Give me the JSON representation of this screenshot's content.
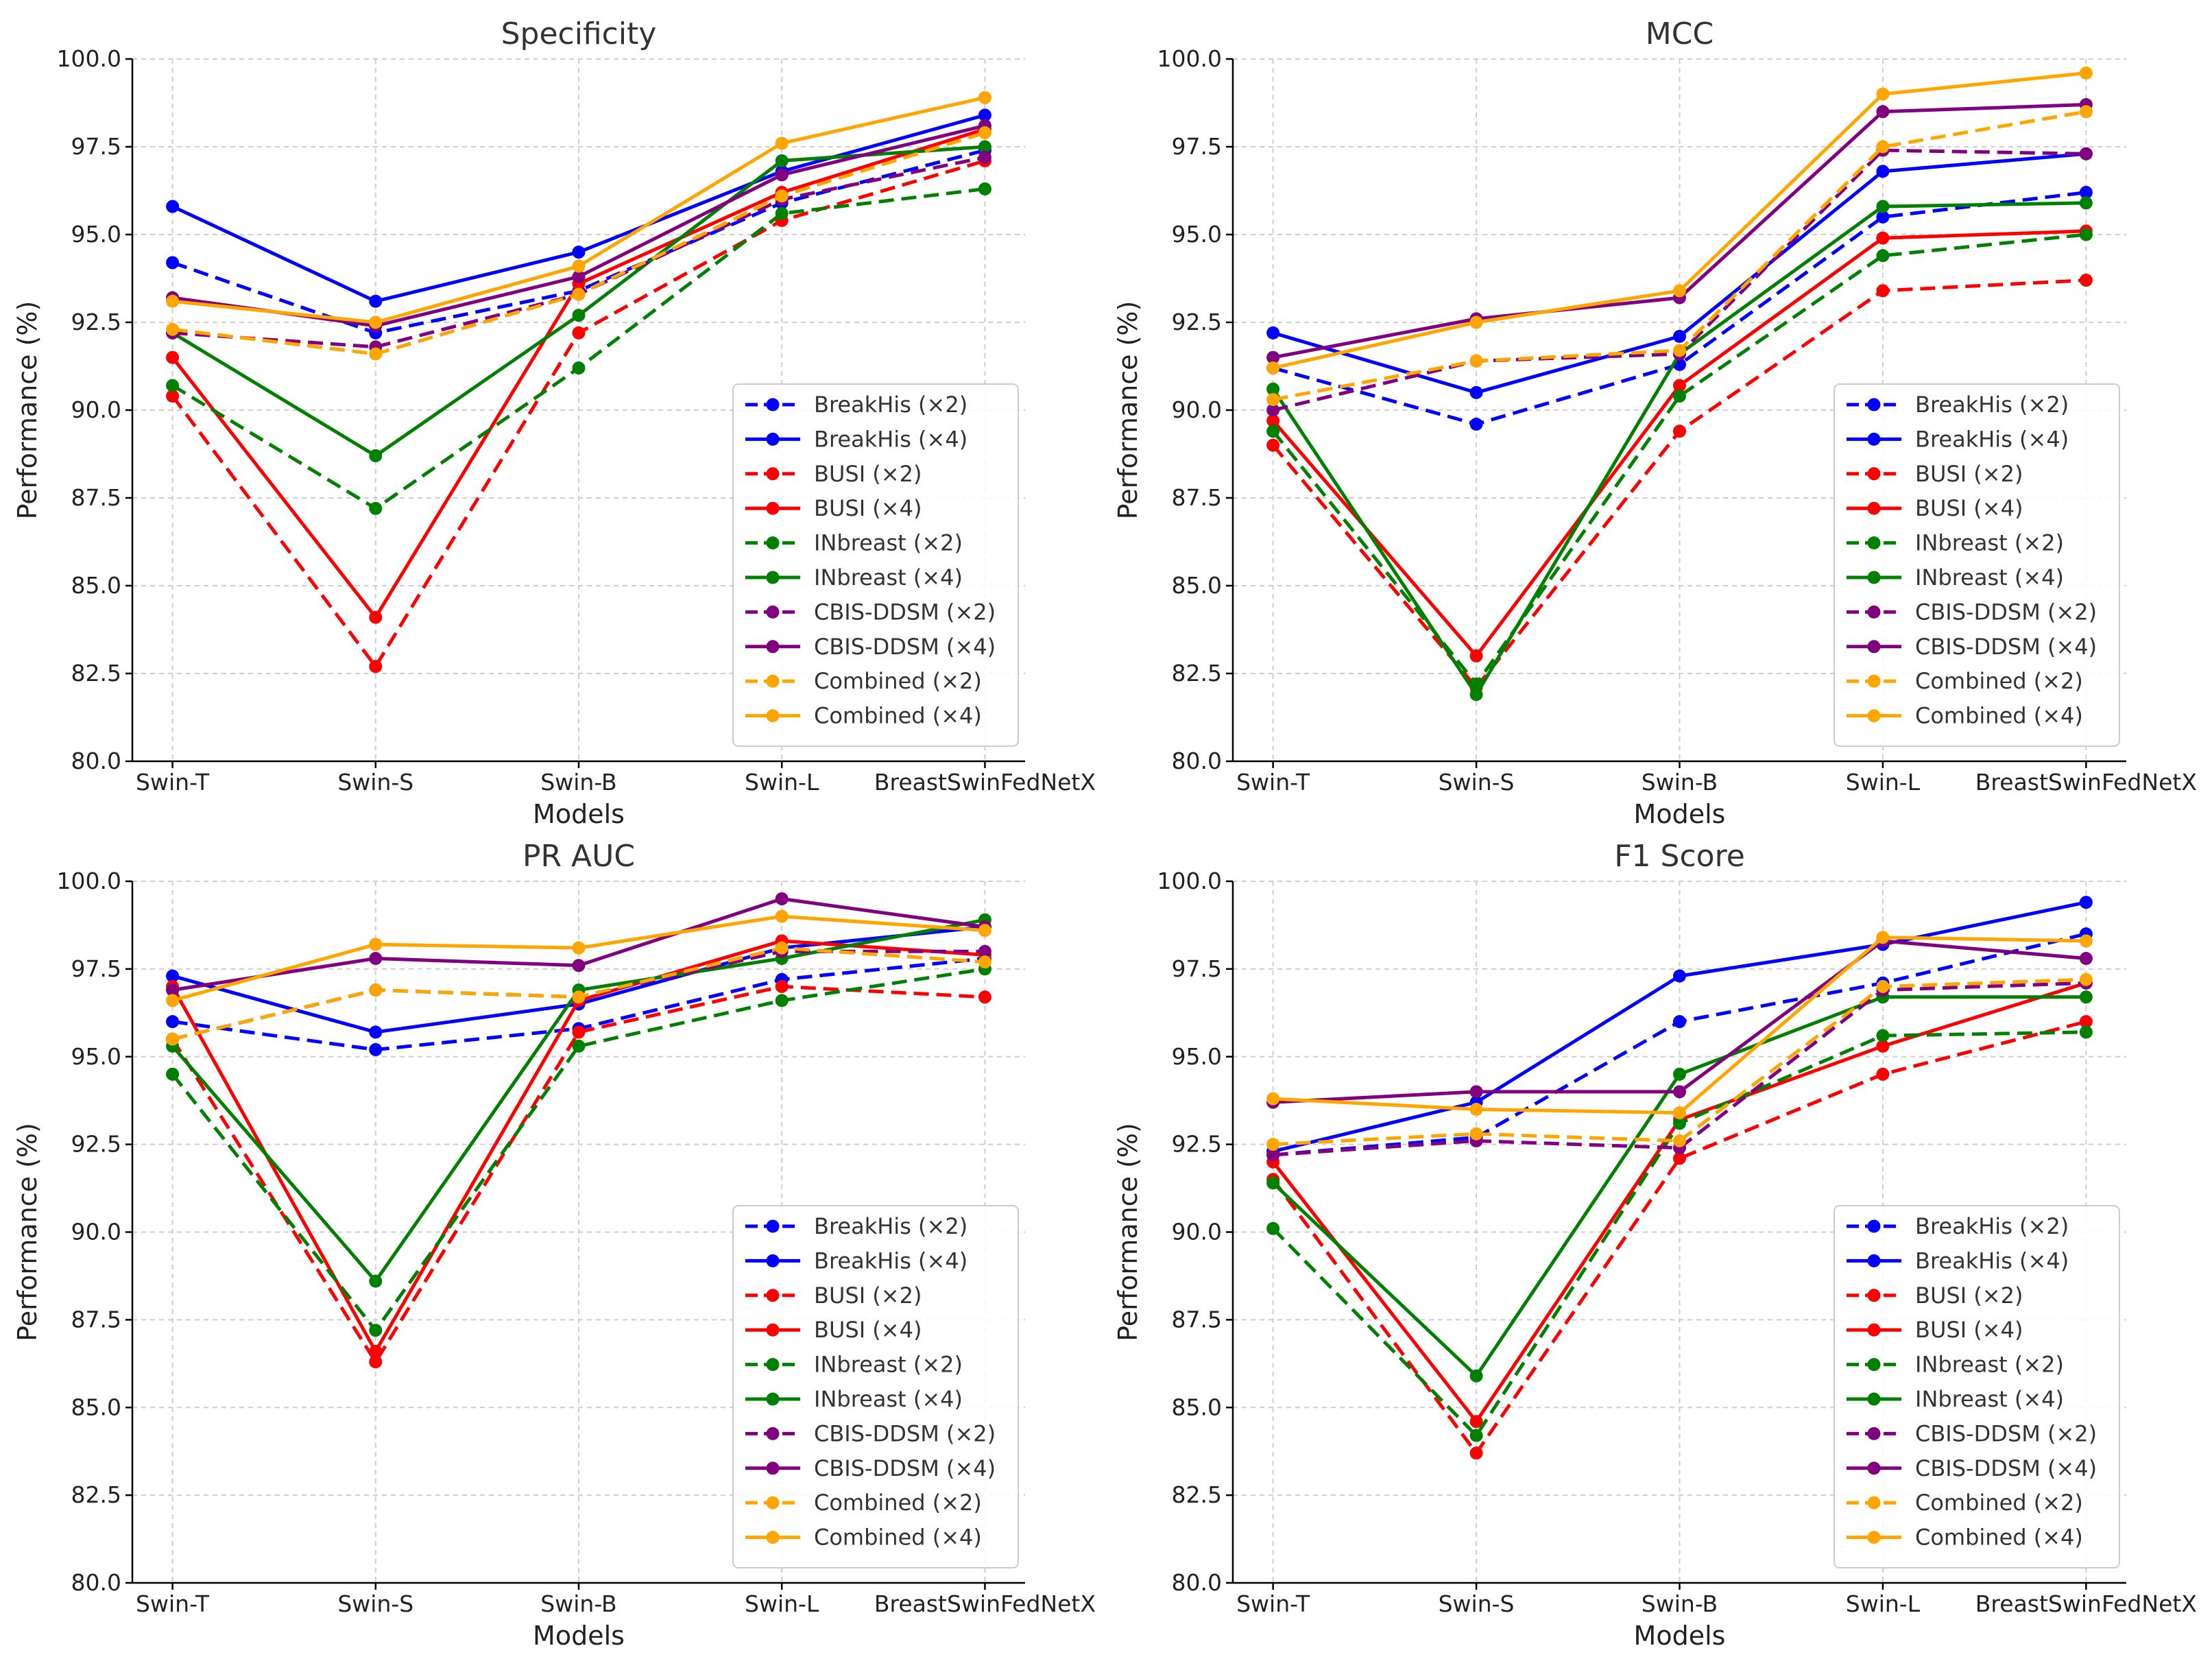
{
  "chart_data": [
    {
      "type": "line",
      "title": "Specificity",
      "xlabel": "Models",
      "ylabel": "Performance (%)",
      "ylim": [
        80,
        100
      ],
      "yticks": [
        "80.0",
        "82.5",
        "85.0",
        "87.5",
        "90.0",
        "92.5",
        "95.0",
        "97.5",
        "100.0"
      ],
      "categories": [
        "Swin-T",
        "Swin-S",
        "Swin-B",
        "Swin-L",
        "BreastSwinFedNetX"
      ],
      "legend_position": "lower-right",
      "grid": true,
      "series": [
        {
          "name": "BreakHis (×2)",
          "color": "#0000ff",
          "dashed": true,
          "values": [
            94.2,
            92.2,
            93.4,
            95.9,
            97.4
          ]
        },
        {
          "name": "BreakHis (×4)",
          "color": "#0000ff",
          "dashed": false,
          "values": [
            95.8,
            93.1,
            94.5,
            96.8,
            98.4
          ]
        },
        {
          "name": "BUSI (×2)",
          "color": "#ff0000",
          "dashed": true,
          "values": [
            90.4,
            82.7,
            92.2,
            95.4,
            97.1
          ]
        },
        {
          "name": "BUSI (×4)",
          "color": "#ff0000",
          "dashed": false,
          "values": [
            91.5,
            84.1,
            93.6,
            96.2,
            98.0
          ]
        },
        {
          "name": "INbreast (×2)",
          "color": "#008000",
          "dashed": true,
          "values": [
            90.7,
            87.2,
            91.2,
            95.6,
            96.3
          ]
        },
        {
          "name": "INbreast (×4)",
          "color": "#008000",
          "dashed": false,
          "values": [
            92.2,
            88.7,
            92.7,
            97.1,
            97.5
          ]
        },
        {
          "name": "CBIS-DDSM (×2)",
          "color": "#800080",
          "dashed": true,
          "values": [
            92.2,
            91.8,
            93.3,
            96.0,
            97.2
          ]
        },
        {
          "name": "CBIS-DDSM (×4)",
          "color": "#800080",
          "dashed": false,
          "values": [
            93.2,
            92.4,
            93.8,
            96.7,
            98.1
          ]
        },
        {
          "name": "Combined (×2)",
          "color": "#ffa500",
          "dashed": true,
          "values": [
            92.3,
            91.6,
            93.3,
            96.1,
            97.9
          ]
        },
        {
          "name": "Combined (×4)",
          "color": "#ffa500",
          "dashed": false,
          "values": [
            93.1,
            92.5,
            94.1,
            97.6,
            98.9
          ]
        }
      ]
    },
    {
      "type": "line",
      "title": "MCC",
      "xlabel": "Models",
      "ylabel": "Performance (%)",
      "ylim": [
        80,
        100
      ],
      "yticks": [
        "80.0",
        "82.5",
        "85.0",
        "87.5",
        "90.0",
        "92.5",
        "95.0",
        "97.5",
        "100.0"
      ],
      "categories": [
        "Swin-T",
        "Swin-S",
        "Swin-B",
        "Swin-L",
        "BreastSwinFedNetX"
      ],
      "legend_position": "lower-right",
      "grid": true,
      "series": [
        {
          "name": "BreakHis (×2)",
          "color": "#0000ff",
          "dashed": true,
          "values": [
            91.2,
            89.6,
            91.3,
            95.5,
            96.2
          ]
        },
        {
          "name": "BreakHis (×4)",
          "color": "#0000ff",
          "dashed": false,
          "values": [
            92.2,
            90.5,
            92.1,
            96.8,
            97.3
          ]
        },
        {
          "name": "BUSI (×2)",
          "color": "#ff0000",
          "dashed": true,
          "values": [
            89.0,
            82.1,
            89.4,
            93.4,
            93.7
          ]
        },
        {
          "name": "BUSI (×4)",
          "color": "#ff0000",
          "dashed": false,
          "values": [
            89.7,
            83.0,
            90.7,
            94.9,
            95.1
          ]
        },
        {
          "name": "INbreast (×2)",
          "color": "#008000",
          "dashed": true,
          "values": [
            89.4,
            82.2,
            90.4,
            94.4,
            95.0
          ]
        },
        {
          "name": "INbreast (×4)",
          "color": "#008000",
          "dashed": false,
          "values": [
            90.6,
            81.9,
            91.6,
            95.8,
            95.9
          ]
        },
        {
          "name": "CBIS-DDSM (×2)",
          "color": "#800080",
          "dashed": true,
          "values": [
            90.0,
            91.4,
            91.6,
            97.4,
            97.3
          ]
        },
        {
          "name": "CBIS-DDSM (×4)",
          "color": "#800080",
          "dashed": false,
          "values": [
            91.5,
            92.6,
            93.2,
            98.5,
            98.7
          ]
        },
        {
          "name": "Combined (×2)",
          "color": "#ffa500",
          "dashed": true,
          "values": [
            90.3,
            91.4,
            91.7,
            97.5,
            98.5
          ]
        },
        {
          "name": "Combined (×4)",
          "color": "#ffa500",
          "dashed": false,
          "values": [
            91.2,
            92.5,
            93.4,
            99.0,
            99.6
          ]
        }
      ]
    },
    {
      "type": "line",
      "title": "PR AUC",
      "xlabel": "Models",
      "ylabel": "Performance (%)",
      "ylim": [
        80,
        100
      ],
      "yticks": [
        "80.0",
        "82.5",
        "85.0",
        "87.5",
        "90.0",
        "92.5",
        "95.0",
        "97.5",
        "100.0"
      ],
      "categories": [
        "Swin-T",
        "Swin-S",
        "Swin-B",
        "Swin-L",
        "BreastSwinFedNetX"
      ],
      "legend_position": "lower-right",
      "grid": true,
      "series": [
        {
          "name": "BreakHis (×2)",
          "color": "#0000ff",
          "dashed": true,
          "values": [
            96.0,
            95.2,
            95.8,
            97.2,
            97.8
          ]
        },
        {
          "name": "BreakHis (×4)",
          "color": "#0000ff",
          "dashed": false,
          "values": [
            97.3,
            95.7,
            96.5,
            98.1,
            98.7
          ]
        },
        {
          "name": "BUSI (×2)",
          "color": "#ff0000",
          "dashed": true,
          "values": [
            95.5,
            86.3,
            95.7,
            97.0,
            96.7
          ]
        },
        {
          "name": "BUSI (×4)",
          "color": "#ff0000",
          "dashed": false,
          "values": [
            97.0,
            86.6,
            96.6,
            98.3,
            97.9
          ]
        },
        {
          "name": "INbreast (×2)",
          "color": "#008000",
          "dashed": true,
          "values": [
            94.5,
            87.2,
            95.3,
            96.6,
            97.5
          ]
        },
        {
          "name": "INbreast (×4)",
          "color": "#008000",
          "dashed": false,
          "values": [
            95.3,
            88.6,
            96.9,
            97.8,
            98.9
          ]
        },
        {
          "name": "CBIS-DDSM (×2)",
          "color": "#800080",
          "dashed": true,
          "values": [
            95.5,
            96.9,
            96.7,
            98.0,
            98.0
          ]
        },
        {
          "name": "CBIS-DDSM (×4)",
          "color": "#800080",
          "dashed": false,
          "values": [
            96.9,
            97.8,
            97.6,
            99.5,
            98.7
          ]
        },
        {
          "name": "Combined (×2)",
          "color": "#ffa500",
          "dashed": true,
          "values": [
            95.5,
            96.9,
            96.7,
            98.1,
            97.7
          ]
        },
        {
          "name": "Combined (×4)",
          "color": "#ffa500",
          "dashed": false,
          "values": [
            96.6,
            98.2,
            98.1,
            99.0,
            98.6
          ]
        }
      ]
    },
    {
      "type": "line",
      "title": "F1 Score",
      "xlabel": "Models",
      "ylabel": "Performance (%)",
      "ylim": [
        80,
        100
      ],
      "yticks": [
        "80.0",
        "82.5",
        "85.0",
        "87.5",
        "90.0",
        "92.5",
        "95.0",
        "97.5",
        "100.0"
      ],
      "categories": [
        "Swin-T",
        "Swin-S",
        "Swin-B",
        "Swin-L",
        "BreastSwinFedNetX"
      ],
      "legend_position": "lower-right",
      "grid": true,
      "series": [
        {
          "name": "BreakHis (×2)",
          "color": "#0000ff",
          "dashed": true,
          "values": [
            92.2,
            92.7,
            96.0,
            97.1,
            98.5
          ]
        },
        {
          "name": "BreakHis (×4)",
          "color": "#0000ff",
          "dashed": false,
          "values": [
            92.3,
            93.7,
            97.3,
            98.2,
            99.4
          ]
        },
        {
          "name": "BUSI (×2)",
          "color": "#ff0000",
          "dashed": true,
          "values": [
            91.5,
            83.7,
            92.1,
            94.5,
            96.0
          ]
        },
        {
          "name": "BUSI (×4)",
          "color": "#ff0000",
          "dashed": false,
          "values": [
            92.0,
            84.6,
            93.2,
            95.3,
            97.1
          ]
        },
        {
          "name": "INbreast (×2)",
          "color": "#008000",
          "dashed": true,
          "values": [
            90.1,
            84.2,
            93.1,
            95.6,
            95.7
          ]
        },
        {
          "name": "INbreast (×4)",
          "color": "#008000",
          "dashed": false,
          "values": [
            91.4,
            85.9,
            94.5,
            96.7,
            96.7
          ]
        },
        {
          "name": "CBIS-DDSM (×2)",
          "color": "#800080",
          "dashed": true,
          "values": [
            92.2,
            92.6,
            92.4,
            96.9,
            97.1
          ]
        },
        {
          "name": "CBIS-DDSM (×4)",
          "color": "#800080",
          "dashed": false,
          "values": [
            93.7,
            94.0,
            94.0,
            98.3,
            97.8
          ]
        },
        {
          "name": "Combined (×2)",
          "color": "#ffa500",
          "dashed": true,
          "values": [
            92.5,
            92.8,
            92.6,
            97.0,
            97.2
          ]
        },
        {
          "name": "Combined (×4)",
          "color": "#ffa500",
          "dashed": false,
          "values": [
            93.8,
            93.5,
            93.4,
            98.4,
            98.3
          ]
        }
      ]
    }
  ]
}
